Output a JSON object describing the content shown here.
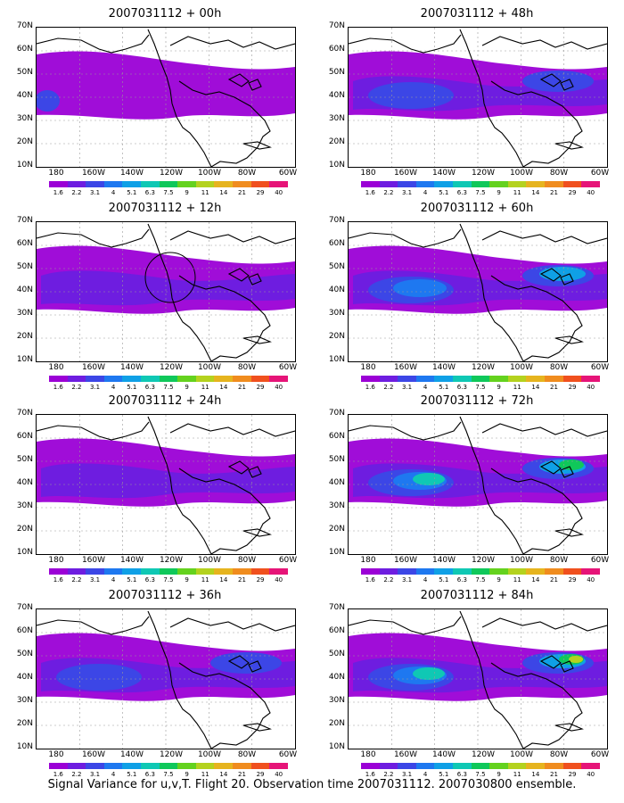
{
  "panels": [
    {
      "title": "2007031112 + 00h"
    },
    {
      "title": "2007031112 + 48h"
    },
    {
      "title": "2007031112 + 12h"
    },
    {
      "title": "2007031112 + 60h"
    },
    {
      "title": "2007031112 + 24h"
    },
    {
      "title": "2007031112 + 72h"
    },
    {
      "title": "2007031112 + 36h"
    },
    {
      "title": "2007031112 + 84h"
    }
  ],
  "lat_labels": [
    "70N",
    "60N",
    "50N",
    "40N",
    "30N",
    "20N",
    "10N"
  ],
  "lon_labels": [
    "180",
    "160W",
    "140W",
    "120W",
    "100W",
    "80W",
    "60W"
  ],
  "legend": {
    "labels": [
      "1.6",
      "2.2",
      "3.1",
      "4",
      "5.1",
      "6.3",
      "7.5",
      "9",
      "11",
      "14",
      "21",
      "29",
      "40"
    ],
    "colors": [
      "#9b00d6",
      "#6e1de0",
      "#3c46e6",
      "#1e78f0",
      "#0fa0e6",
      "#0fc8b4",
      "#0fc85a",
      "#64d21e",
      "#b4d21e",
      "#e6b41e",
      "#f08c1e",
      "#f0501e",
      "#e61478"
    ]
  },
  "footer": "Signal Variance for u,v,T. Flight 20. Observation time 2007031112. 2007030800 ensemble."
}
